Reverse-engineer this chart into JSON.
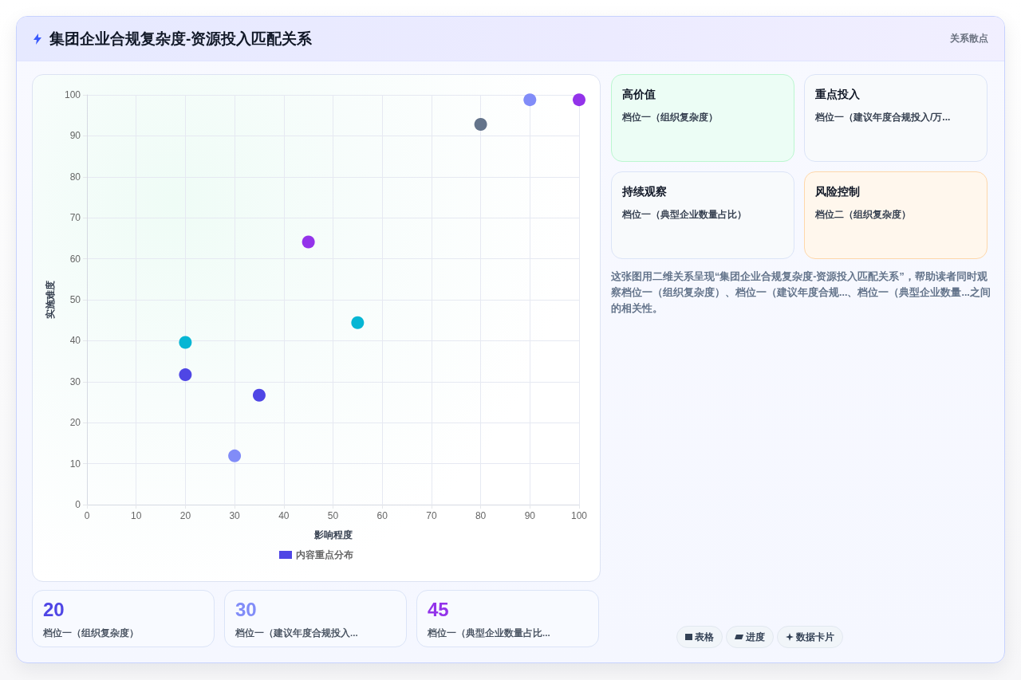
{
  "chart_data": {
    "type": "scatter",
    "title": "集团企业合规复杂度-资源投入匹配关系",
    "xlabel": "影响程度",
    "ylabel": "实施难度",
    "x": [
      20,
      20,
      30,
      35,
      45,
      55,
      80,
      90,
      100
    ],
    "series": [
      {
        "name": "内容重点分布",
        "color": "#4f46e5",
        "values": [
          39.6,
          31.7,
          11.9,
          26.7,
          64.1,
          44.4,
          92.8,
          98.8,
          98.8
        ],
        "colors": [
          "#06b6d4",
          "#4f46e5",
          "#818cf8",
          "#4f46e5",
          "#9333ea",
          "#06b6d4",
          "#64748b",
          "#818cf8",
          "#9333ea"
        ]
      }
    ],
    "xlim": [
      0,
      100
    ],
    "ylim": [
      0,
      100
    ],
    "xticks": [
      0,
      10,
      20,
      30,
      40,
      50,
      60,
      70,
      80,
      90,
      100
    ],
    "yticks": [
      0,
      10,
      20,
      30,
      40,
      50,
      60,
      70,
      80,
      90,
      100
    ],
    "grid": true,
    "legend": "bottom",
    "marker": "circle",
    "annotations": [
      "关系散点",
      "高价值",
      "档位一（组织复杂度）",
      "重点投入",
      "档位一（建议年度合规投入/万...",
      "持续观察",
      "档位一（典型企业数量占比）",
      "风险控制",
      "档位二（组织复杂度）",
      "这张图用二维关系呈现“集团企业合规复杂度-资源投入匹配关系”，帮助读者同时观察档位一（组织复杂度）、档位一（建议年度合规...、档位一（典型企业数量...之间的相关性。",
      "20",
      "档位一（组织复杂度）",
      "30",
      "档位一（建议年度合规投入...",
      "45",
      "档位一（典型企业数量占比...",
      "表格",
      "进度",
      "数据卡片"
    ]
  }
}
